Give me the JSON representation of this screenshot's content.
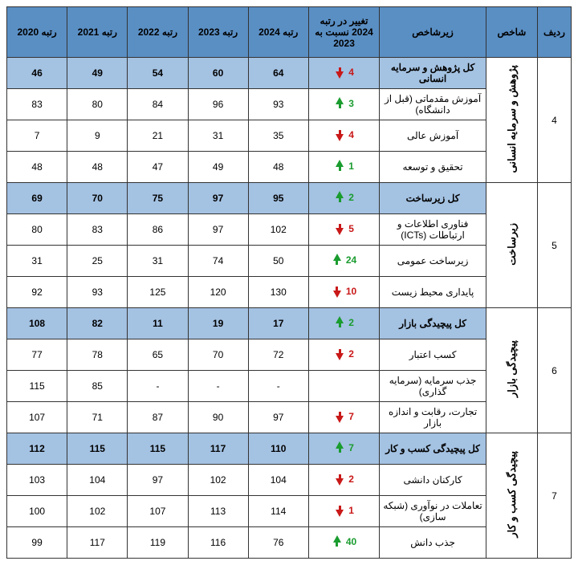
{
  "headers": {
    "row_no": "ردیف",
    "index": "شاخص",
    "sub_index": "زیرشاخص",
    "change": "تغییر در رتبه 2024 نسبت به 2023",
    "rank2024": "رتبه 2024",
    "rank2023": "رتبه 2023",
    "rank2022": "رتبه 2022",
    "rank2021": "رتبه 2021",
    "rank2020": "رتبه 2020"
  },
  "groups": [
    {
      "row_no": "4",
      "index": "پژوهش و سرمایه انسانی",
      "rows": [
        {
          "total": true,
          "sub": "کل پژوهش و سرمایه انسانی",
          "chg": 4,
          "dir": "down",
          "r24": "64",
          "r23": "60",
          "r22": "54",
          "r21": "49",
          "r20": "46"
        },
        {
          "total": false,
          "sub": "آموزش مقدماتی (قبل از دانشگاه)",
          "chg": 3,
          "dir": "up",
          "r24": "93",
          "r23": "96",
          "r22": "84",
          "r21": "80",
          "r20": "83"
        },
        {
          "total": false,
          "sub": "آموزش عالی",
          "chg": 4,
          "dir": "down",
          "r24": "35",
          "r23": "31",
          "r22": "21",
          "r21": "9",
          "r20": "7"
        },
        {
          "total": false,
          "sub": "تحقیق و توسعه",
          "chg": 1,
          "dir": "up",
          "r24": "48",
          "r23": "49",
          "r22": "47",
          "r21": "48",
          "r20": "48"
        }
      ]
    },
    {
      "row_no": "5",
      "index": "زیرساخت",
      "rows": [
        {
          "total": true,
          "sub": "کل زیرساخت",
          "chg": 2,
          "dir": "up",
          "r24": "95",
          "r23": "97",
          "r22": "75",
          "r21": "70",
          "r20": "69"
        },
        {
          "total": false,
          "sub": "فناوری اطلاعات و ارتباطات (ICTs)",
          "chg": 5,
          "dir": "down",
          "r24": "102",
          "r23": "97",
          "r22": "86",
          "r21": "83",
          "r20": "80"
        },
        {
          "total": false,
          "sub": "زیرساخت عمومی",
          "chg": 24,
          "dir": "up",
          "r24": "50",
          "r23": "74",
          "r22": "31",
          "r21": "25",
          "r20": "31"
        },
        {
          "total": false,
          "sub": "پایداری محیط زیست",
          "chg": 10,
          "dir": "down",
          "r24": "130",
          "r23": "120",
          "r22": "125",
          "r21": "93",
          "r20": "92"
        }
      ]
    },
    {
      "row_no": "6",
      "index": "پیچیدگی بازار",
      "rows": [
        {
          "total": true,
          "sub": "کل پیچیدگی بازار",
          "chg": 2,
          "dir": "up",
          "r24": "17",
          "r23": "19",
          "r22": "11",
          "r21": "82",
          "r20": "108"
        },
        {
          "total": false,
          "sub": "کسب اعتبار",
          "chg": 2,
          "dir": "down",
          "r24": "72",
          "r23": "70",
          "r22": "65",
          "r21": "78",
          "r20": "77"
        },
        {
          "total": false,
          "sub": "جذب سرمایه (سرمایه گذاری)",
          "chg": null,
          "dir": null,
          "r24": "-",
          "r23": "-",
          "r22": "-",
          "r21": "85",
          "r20": "115"
        },
        {
          "total": false,
          "sub": "تجارت، رقابت و اندازه بازار",
          "chg": 7,
          "dir": "down",
          "r24": "97",
          "r23": "90",
          "r22": "87",
          "r21": "71",
          "r20": "107"
        }
      ]
    },
    {
      "row_no": "7",
      "index": "پیچیدگی کسب و کار",
      "rows": [
        {
          "total": true,
          "sub": "کل پیچیدگی کسب و کار",
          "chg": 7,
          "dir": "up",
          "r24": "110",
          "r23": "117",
          "r22": "115",
          "r21": "115",
          "r20": "112"
        },
        {
          "total": false,
          "sub": "کارکنان دانشی",
          "chg": 2,
          "dir": "down",
          "r24": "104",
          "r23": "102",
          "r22": "97",
          "r21": "104",
          "r20": "103"
        },
        {
          "total": false,
          "sub": "تعاملات در نوآوری (شبکه سازی)",
          "chg": 1,
          "dir": "down",
          "r24": "114",
          "r23": "113",
          "r22": "107",
          "r21": "102",
          "r20": "100"
        },
        {
          "total": false,
          "sub": "جذب دانش",
          "chg": 40,
          "dir": "up",
          "r24": "76",
          "r23": "116",
          "r22": "119",
          "r21": "117",
          "r20": "99"
        }
      ]
    }
  ],
  "style": {
    "header_bg": "#5a8fc4",
    "total_bg": "#a4c2e2",
    "border": "#333333",
    "up_color": "#1a9c2f",
    "down_color": "#c91818",
    "font_size_cell": 12,
    "font_size_index": 13
  }
}
